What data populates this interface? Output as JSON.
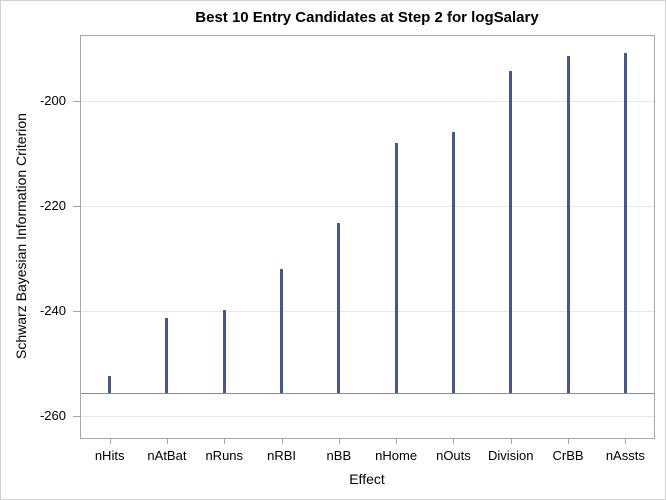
{
  "chart_data": {
    "type": "bar",
    "title": "Best 10 Entry Candidates at Step 2 for logSalary",
    "xlabel": "Effect",
    "ylabel": "Schwarz Bayesian Information Criterion",
    "categories": [
      "nHits",
      "nAtBat",
      "nRuns",
      "nRBI",
      "nBB",
      "nHome",
      "nOuts",
      "Division",
      "CrBB",
      "nAssts"
    ],
    "values": [
      -252.4,
      -241.3,
      -239.8,
      -232.0,
      -223.2,
      -207.9,
      -205.8,
      -194.3,
      -191.4,
      -190.9
    ],
    "baseline": -255.7,
    "ylim": [
      -264.2,
      -187.6
    ],
    "yticks": [
      -200,
      -220,
      -240,
      -260
    ],
    "ytick_labels": [
      "-200",
      "-220",
      "-240",
      "-260"
    ],
    "grid": true,
    "legend": null,
    "bar_color": "#445694"
  }
}
